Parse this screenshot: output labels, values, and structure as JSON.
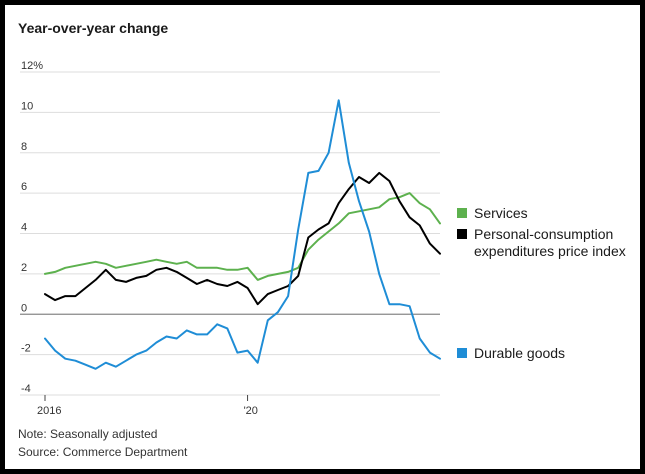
{
  "chart_data": {
    "type": "line",
    "title": "Year-over-year change",
    "xlabel": "",
    "ylabel": "",
    "ylim": [
      -4,
      12
    ],
    "y_ticks": [
      "12%",
      "10",
      "8",
      "6",
      "4",
      "2",
      "0",
      "-2",
      "-4"
    ],
    "y_tick_values": [
      12,
      10,
      8,
      6,
      4,
      2,
      0,
      -2,
      -4
    ],
    "x_range": [
      2016.0,
      2023.8
    ],
    "x_ticks": [
      "2016",
      "'20"
    ],
    "x_tick_values": [
      2016.0,
      2020.0
    ],
    "grid": true,
    "legend_placement": "right",
    "series": [
      {
        "name": "Services",
        "color": "#5db14e",
        "x": [
          2016.0,
          2016.2,
          2016.4,
          2016.6,
          2016.8,
          2017.0,
          2017.2,
          2017.4,
          2017.6,
          2017.8,
          2018.0,
          2018.2,
          2018.4,
          2018.6,
          2018.8,
          2019.0,
          2019.2,
          2019.4,
          2019.6,
          2019.8,
          2020.0,
          2020.2,
          2020.4,
          2020.6,
          2020.8,
          2021.0,
          2021.2,
          2021.4,
          2021.6,
          2021.8,
          2022.0,
          2022.2,
          2022.4,
          2022.6,
          2022.8,
          2023.0,
          2023.2,
          2023.4,
          2023.6,
          2023.8
        ],
        "values": [
          2.0,
          2.1,
          2.3,
          2.4,
          2.5,
          2.6,
          2.5,
          2.3,
          2.4,
          2.5,
          2.6,
          2.7,
          2.6,
          2.5,
          2.6,
          2.3,
          2.3,
          2.3,
          2.2,
          2.2,
          2.3,
          1.7,
          1.9,
          2.0,
          2.1,
          2.3,
          3.2,
          3.7,
          4.1,
          4.5,
          5.0,
          5.1,
          5.2,
          5.3,
          5.7,
          5.8,
          6.0,
          5.5,
          5.2,
          4.5
        ]
      },
      {
        "name": "Personal-consumption expenditures price index",
        "color": "#000000",
        "x": [
          2016.0,
          2016.2,
          2016.4,
          2016.6,
          2016.8,
          2017.0,
          2017.2,
          2017.4,
          2017.6,
          2017.8,
          2018.0,
          2018.2,
          2018.4,
          2018.6,
          2018.8,
          2019.0,
          2019.2,
          2019.4,
          2019.6,
          2019.8,
          2020.0,
          2020.2,
          2020.4,
          2020.6,
          2020.8,
          2021.0,
          2021.2,
          2021.4,
          2021.6,
          2021.8,
          2022.0,
          2022.2,
          2022.4,
          2022.6,
          2022.8,
          2023.0,
          2023.2,
          2023.4,
          2023.6,
          2023.8
        ],
        "values": [
          1.0,
          0.7,
          0.9,
          0.9,
          1.3,
          1.7,
          2.2,
          1.7,
          1.6,
          1.8,
          1.9,
          2.2,
          2.3,
          2.1,
          1.8,
          1.5,
          1.7,
          1.5,
          1.4,
          1.6,
          1.3,
          0.5,
          1.0,
          1.2,
          1.4,
          1.9,
          3.8,
          4.2,
          4.5,
          5.5,
          6.2,
          6.8,
          6.5,
          7.0,
          6.6,
          5.6,
          4.8,
          4.4,
          3.5,
          3.0
        ]
      },
      {
        "name": "Durable goods",
        "color": "#1f8dd6",
        "x": [
          2016.0,
          2016.2,
          2016.4,
          2016.6,
          2016.8,
          2017.0,
          2017.2,
          2017.4,
          2017.6,
          2017.8,
          2018.0,
          2018.2,
          2018.4,
          2018.6,
          2018.8,
          2019.0,
          2019.2,
          2019.4,
          2019.6,
          2019.8,
          2020.0,
          2020.2,
          2020.4,
          2020.6,
          2020.8,
          2021.0,
          2021.2,
          2021.4,
          2021.6,
          2021.8,
          2022.0,
          2022.2,
          2022.4,
          2022.6,
          2022.8,
          2023.0,
          2023.2,
          2023.4,
          2023.6,
          2023.8
        ],
        "values": [
          -1.2,
          -1.8,
          -2.2,
          -2.3,
          -2.5,
          -2.7,
          -2.4,
          -2.6,
          -2.3,
          -2.0,
          -1.8,
          -1.4,
          -1.1,
          -1.2,
          -0.8,
          -1.0,
          -1.0,
          -0.5,
          -0.7,
          -1.9,
          -1.8,
          -2.4,
          -0.3,
          0.1,
          0.9,
          4.2,
          7.0,
          7.1,
          8.0,
          10.6,
          7.5,
          5.6,
          4.1,
          2.0,
          0.5,
          0.5,
          0.4,
          -1.2,
          -1.9,
          -2.2
        ]
      }
    ]
  },
  "notes": {
    "note": "Note: Seasonally adjusted",
    "source": "Source: Commerce Department"
  },
  "legend": {
    "services": "Services",
    "pce_line1": "Personal-consumption",
    "pce_line2": "expenditures price index",
    "durable": "Durable goods"
  }
}
